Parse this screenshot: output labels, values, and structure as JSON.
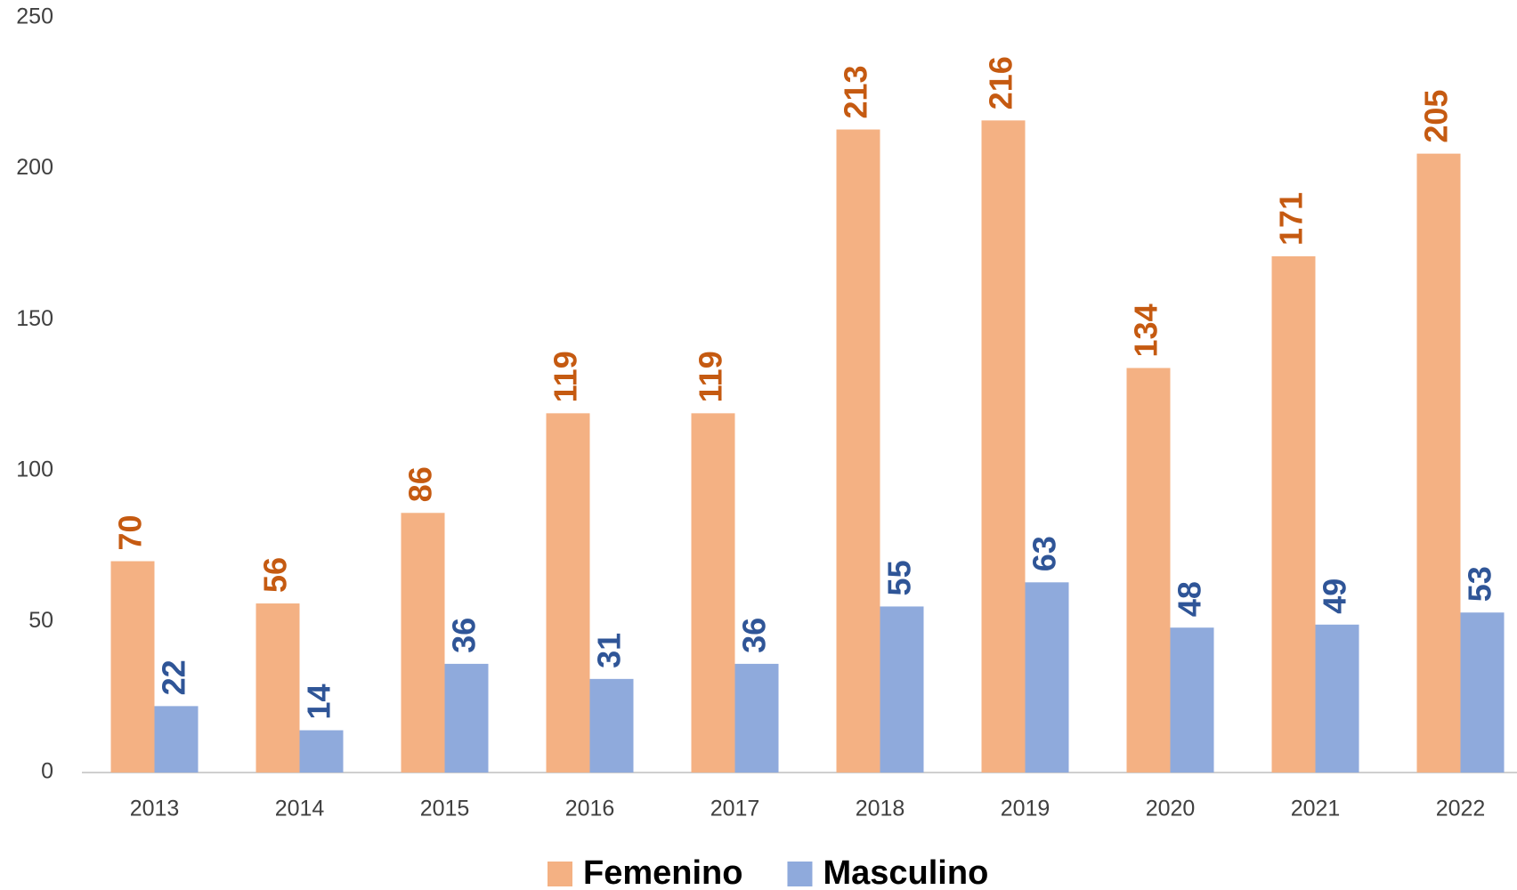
{
  "chart_data": {
    "type": "bar",
    "categories": [
      "2013",
      "2014",
      "2015",
      "2016",
      "2017",
      "2018",
      "2019",
      "2020",
      "2021",
      "2022"
    ],
    "series": [
      {
        "name": "Femenino",
        "color": "#f4b183",
        "label_color": "#c55a11",
        "values": [
          70,
          56,
          86,
          119,
          119,
          213,
          216,
          134,
          171,
          205
        ]
      },
      {
        "name": "Masculino",
        "color": "#8faadc",
        "label_color": "#2f5597",
        "values": [
          22,
          14,
          36,
          31,
          36,
          55,
          63,
          48,
          49,
          53
        ]
      }
    ],
    "ylim": [
      0,
      250
    ],
    "yticks": [
      0,
      50,
      100,
      150,
      200,
      250
    ],
    "grid": false,
    "legend": "bottom"
  }
}
